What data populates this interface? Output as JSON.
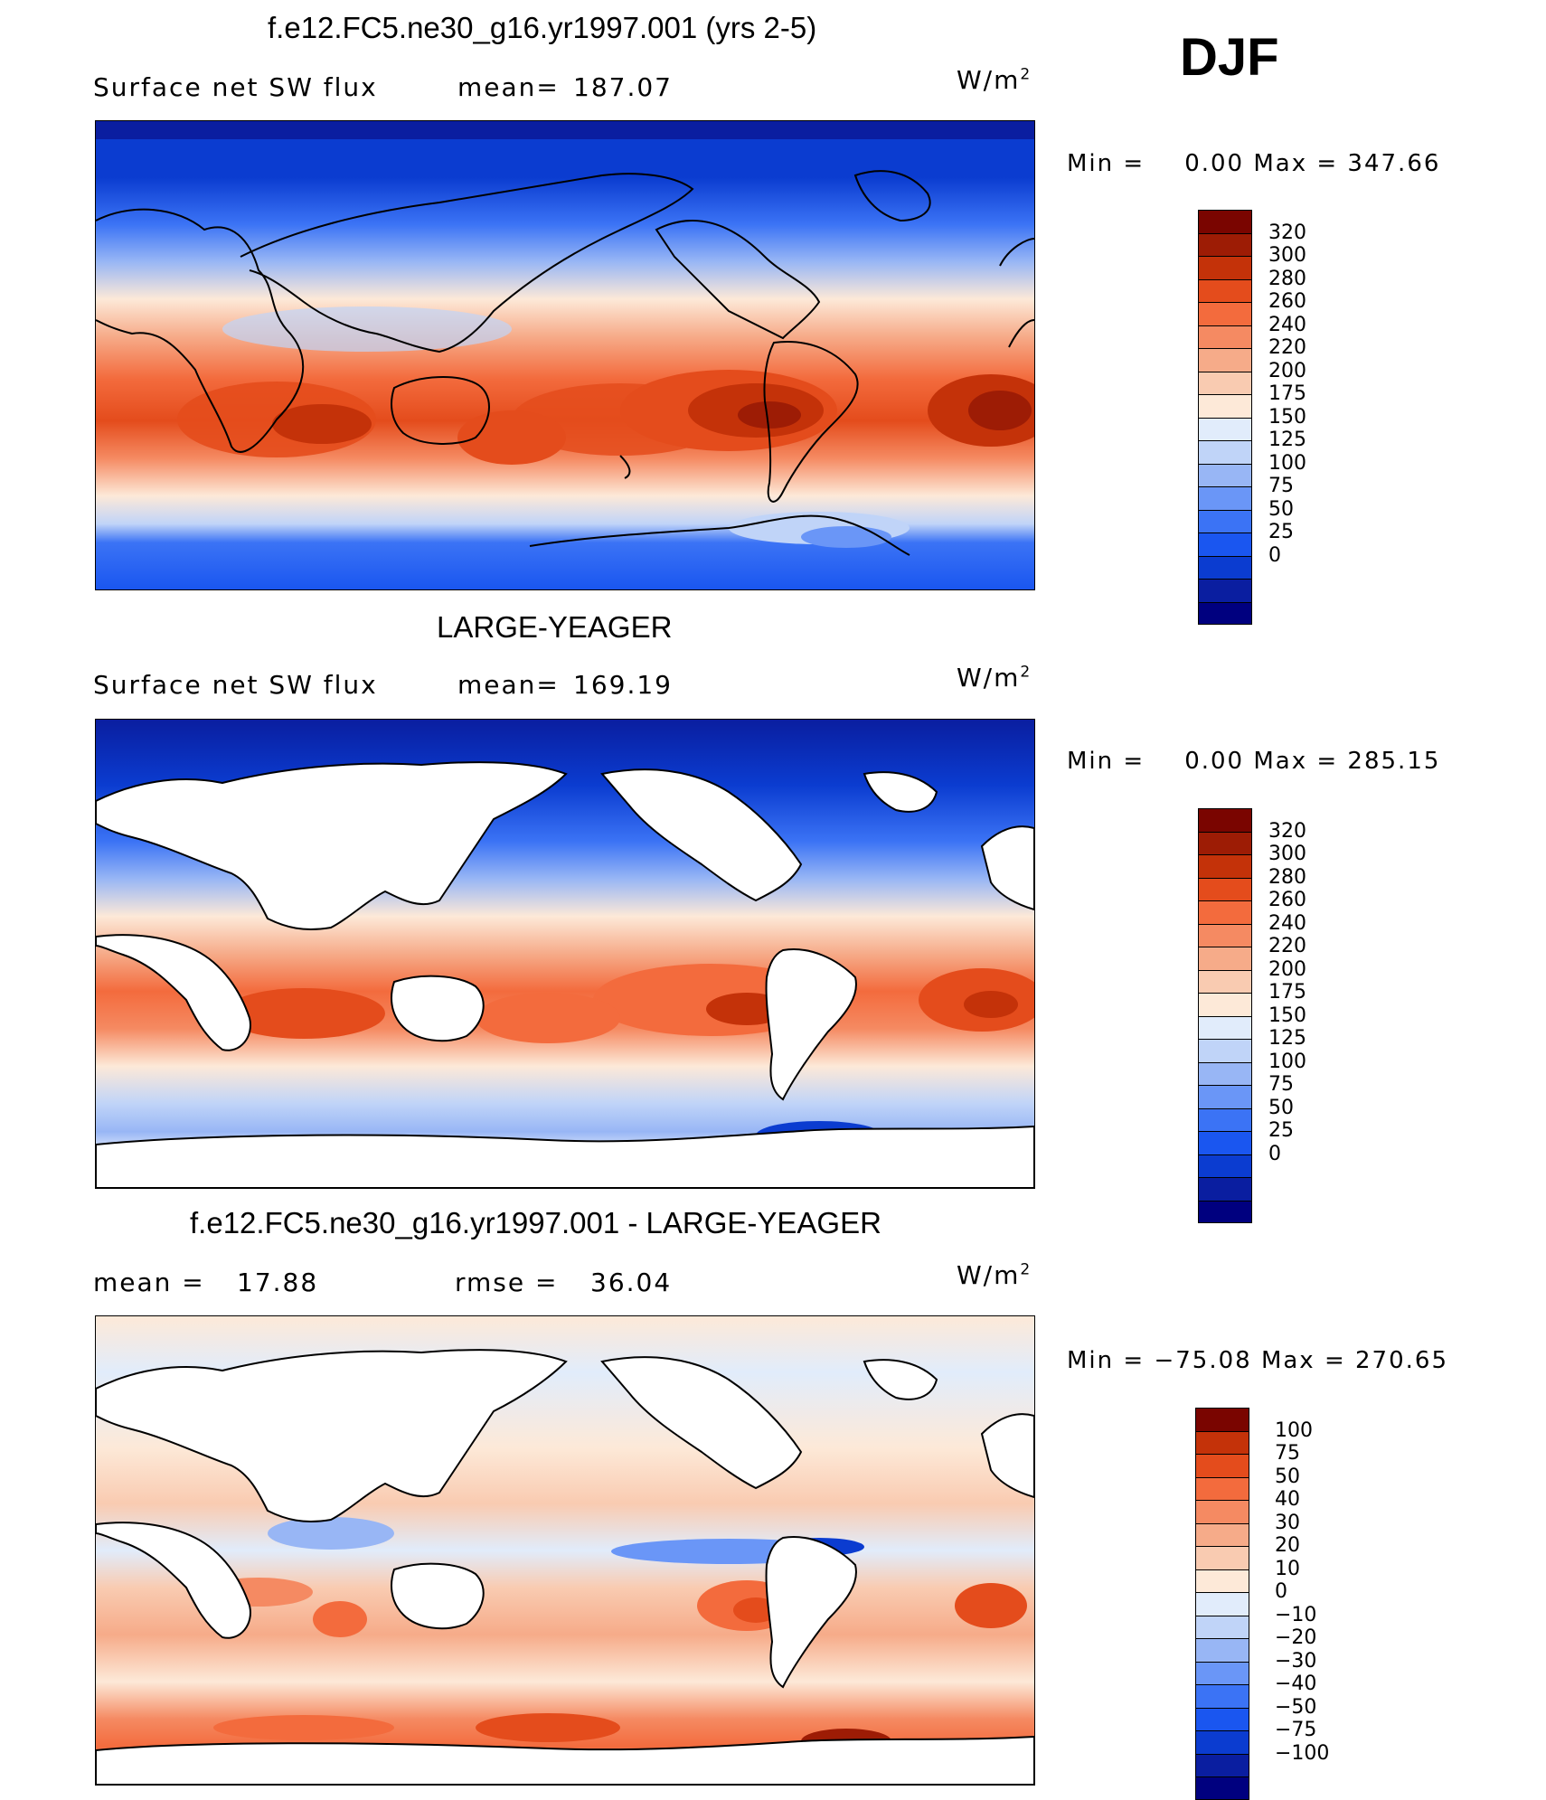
{
  "season": "DJF",
  "units": "W/m",
  "units_exp": "2",
  "colors": {
    "abs": [
      "#00007f",
      "#0a1ea0",
      "#0b3cd0",
      "#1a56f0",
      "#3b73f5",
      "#6a96f7",
      "#98b6f5",
      "#c0d4f8",
      "#e1ecfb",
      "#fde9d8",
      "#f9cbb1",
      "#f6ab89",
      "#f58a62",
      "#f36b3d",
      "#e44c1c",
      "#c43209",
      "#9d1c05",
      "#7a0500"
    ],
    "diff": [
      "#00007f",
      "#0a1ea0",
      "#0b3cd0",
      "#1a56f0",
      "#3b73f5",
      "#6a96f7",
      "#98b6f5",
      "#c0d4f8",
      "#e1ecfb",
      "#fde9d8",
      "#f9cbb1",
      "#f6ab89",
      "#f58a62",
      "#f36b3d",
      "#e44c1c",
      "#c43209",
      "#7a0500"
    ]
  },
  "chart_data": [
    {
      "type": "heatmap",
      "title": "f.e12.FC5.ne30_g16.yr1997.001 (yrs 2-5)",
      "left_label": "Surface net SW flux",
      "mean_label": "mean=",
      "mean_value": "187.07",
      "min_label": "Min =",
      "min_value": "0.00",
      "max_label": "Max =",
      "max_value": "347.66",
      "colorbar_levels": [
        "320",
        "300",
        "280",
        "260",
        "240",
        "220",
        "200",
        "175",
        "150",
        "125",
        "100",
        "75",
        "50",
        "25",
        "0"
      ]
    },
    {
      "type": "heatmap",
      "title": "LARGE-YEAGER",
      "left_label": "Surface net SW flux",
      "mean_label": "mean=",
      "mean_value": "169.19",
      "min_label": "Min =",
      "min_value": "0.00",
      "max_label": "Max =",
      "max_value": "285.15",
      "colorbar_levels": [
        "320",
        "300",
        "280",
        "260",
        "240",
        "220",
        "200",
        "175",
        "150",
        "125",
        "100",
        "75",
        "50",
        "25",
        "0"
      ]
    },
    {
      "type": "heatmap",
      "title": "f.e12.FC5.ne30_g16.yr1997.001 - LARGE-YEAGER",
      "left_label": "mean =",
      "mean_value": "17.88",
      "rmse_label": "rmse =",
      "rmse_value": "36.04",
      "min_label": "Min =",
      "min_value": "−75.08",
      "max_label": "Max =",
      "max_value": "270.65",
      "colorbar_levels": [
        "100",
        "75",
        "50",
        "40",
        "30",
        "20",
        "10",
        "0",
        "−10",
        "−20",
        "−30",
        "−40",
        "−50",
        "−75",
        "−100"
      ]
    }
  ]
}
